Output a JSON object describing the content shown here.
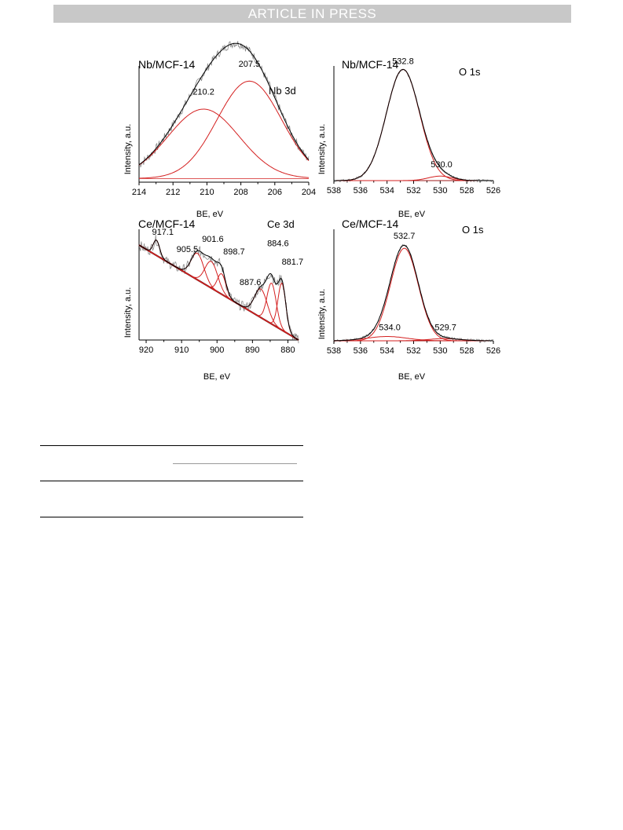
{
  "header": {
    "banner": "ARTICLE IN PRESS"
  },
  "chart_data": [
    {
      "type": "line",
      "title": "Nb 3d",
      "sample": "Nb/MCF-14",
      "xlabel": "BE, eV",
      "ylabel": "Intensity, a.u.",
      "xlim": [
        214,
        204
      ],
      "xticks": [
        "214",
        "212",
        "210",
        "208",
        "206",
        "204"
      ],
      "ylim": [
        0,
        1
      ],
      "baseline": [
        0.03,
        0.03
      ],
      "peaks": [
        {
          "center": 210.2,
          "height": 0.57,
          "width": 2.1,
          "label": "210.2"
        },
        {
          "center": 207.5,
          "height": 0.8,
          "width": 1.9,
          "label": "207.5"
        }
      ],
      "label_positions": [
        {
          "text": "210.2",
          "x": 210.2,
          "y": 0.72
        },
        {
          "text": "207.5",
          "x": 207.5,
          "y": 0.95
        }
      ],
      "series": [
        {
          "name": "experimental",
          "color": "#808080"
        },
        {
          "name": "envelope",
          "color": "#000000"
        },
        {
          "name": "components",
          "color": "#d42020"
        }
      ]
    },
    {
      "type": "line",
      "title": "O 1s",
      "sample": "Nb/MCF-14",
      "xlabel": "BE, eV",
      "ylabel": "Intensity, a.u.",
      "xlim": [
        538,
        526
      ],
      "xticks": [
        "538",
        "536",
        "534",
        "532",
        "530",
        "528",
        "526"
      ],
      "ylim": [
        0,
        1
      ],
      "baseline": [
        0.0,
        0.0
      ],
      "peaks": [
        {
          "center": 532.8,
          "height": 0.99,
          "width": 1.25,
          "label": "532.8"
        },
        {
          "center": 530.0,
          "height": 0.04,
          "width": 0.9,
          "label": "530.0"
        }
      ],
      "label_positions": [
        {
          "text": "532.8",
          "x": 532.8,
          "y": 1.04
        },
        {
          "text": "530.0",
          "x": 529.9,
          "y": 0.12
        }
      ],
      "series": [
        {
          "name": "experimental",
          "color": "#808080"
        },
        {
          "name": "envelope",
          "color": "#000000"
        },
        {
          "name": "components",
          "color": "#d42020"
        }
      ]
    },
    {
      "type": "line",
      "title": "Ce 3d",
      "sample": "Ce/MCF-14",
      "xlabel": "BE, eV",
      "ylabel": "Intensity, a.u.",
      "xlim": [
        922,
        877
      ],
      "xticks": [
        "920",
        "910",
        "900",
        "890",
        "880"
      ],
      "ylim": [
        0,
        1
      ],
      "baseline": [
        0.93,
        0.0
      ],
      "peaks": [
        {
          "center": 917.1,
          "height": 0.15,
          "width": 0.9,
          "label": "917.1"
        },
        {
          "center": 905.5,
          "height": 0.26,
          "width": 1.8,
          "label": "905.5"
        },
        {
          "center": 901.6,
          "height": 0.26,
          "width": 1.8,
          "label": "901.6"
        },
        {
          "center": 898.7,
          "height": 0.2,
          "width": 1.2,
          "label": "898.7"
        },
        {
          "center": 887.6,
          "height": 0.28,
          "width": 1.8,
          "label": "887.6"
        },
        {
          "center": 884.6,
          "height": 0.4,
          "width": 1.3,
          "label": "884.6"
        },
        {
          "center": 881.7,
          "height": 0.46,
          "width": 1.1,
          "label": "881.7"
        }
      ],
      "label_positions": [
        {
          "text": "917.1",
          "x": 915.3,
          "y": 1.03
        },
        {
          "text": "905.5",
          "x": 908.4,
          "y": 0.86
        },
        {
          "text": "901.6",
          "x": 901.2,
          "y": 0.96
        },
        {
          "text": "898.7",
          "x": 895.2,
          "y": 0.84
        },
        {
          "text": "887.6",
          "x": 890.6,
          "y": 0.54
        },
        {
          "text": "884.6",
          "x": 882.8,
          "y": 0.92
        },
        {
          "text": "881.7",
          "x": 878.7,
          "y": 0.74
        }
      ],
      "series": [
        {
          "name": "experimental",
          "color": "#808080"
        },
        {
          "name": "envelope",
          "color": "#000000"
        },
        {
          "name": "components",
          "color": "#d42020"
        },
        {
          "name": "background",
          "color": "#5a0000"
        }
      ]
    },
    {
      "type": "line",
      "title": "O 1s",
      "sample": "Ce/MCF-14",
      "xlabel": "BE, eV",
      "ylabel": "Intensity, a.u.",
      "xlim": [
        538,
        526
      ],
      "xticks": [
        "538",
        "536",
        "534",
        "532",
        "530",
        "528",
        "526"
      ],
      "ylim": [
        0,
        1
      ],
      "baseline": [
        0.0,
        0.0
      ],
      "peaks": [
        {
          "center": 532.7,
          "height": 0.86,
          "width": 1.05,
          "label": "532.7"
        },
        {
          "center": 534.0,
          "height": 0.04,
          "width": 1.5,
          "label": "534.0"
        },
        {
          "center": 529.7,
          "height": 0.02,
          "width": 1.2,
          "label": "529.7"
        }
      ],
      "label_positions": [
        {
          "text": "532.7",
          "x": 532.7,
          "y": 0.95
        },
        {
          "text": "534.0",
          "x": 533.8,
          "y": 0.1
        },
        {
          "text": "529.7",
          "x": 529.6,
          "y": 0.1
        }
      ],
      "series": [
        {
          "name": "experimental",
          "color": "#808080"
        },
        {
          "name": "envelope",
          "color": "#000000"
        },
        {
          "name": "components",
          "color": "#d42020"
        }
      ]
    }
  ]
}
